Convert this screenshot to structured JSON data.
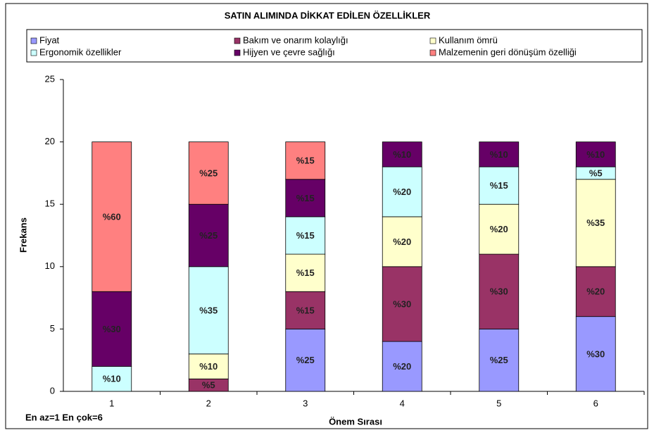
{
  "chart_data": {
    "type": "stacked_bar",
    "title": "SATIN ALIMINDA DİKKAT EDİLEN ÖZELLİKLER",
    "x_label": "Önem Sırası",
    "y_label": "Frekans",
    "annotation": "En az=1 En çok=6",
    "categories": [
      "1",
      "2",
      "3",
      "4",
      "5",
      "6"
    ],
    "ylim": [
      0,
      25
    ],
    "yticks": [
      0,
      5,
      10,
      15,
      20,
      25
    ],
    "grid": false,
    "legend": "top",
    "series": [
      {
        "name": "Fiyat",
        "color": "#9999ff",
        "values": [
          0,
          0,
          5,
          4,
          5,
          6
        ],
        "value_labels": [
          null,
          null,
          "%25",
          "%20",
          "%25",
          "%30"
        ]
      },
      {
        "name": "Bakım ve onarım kolaylığı",
        "color": "#993366",
        "values": [
          0,
          1,
          3,
          6,
          6,
          4
        ],
        "value_labels": [
          null,
          "%5",
          "%15",
          "%30",
          "%30",
          "%20"
        ]
      },
      {
        "name": "Kullanım ömrü",
        "color": "#ffffcc",
        "values": [
          0,
          2,
          3,
          4,
          4,
          7
        ],
        "value_labels": [
          null,
          "%10",
          "%15",
          "%20",
          "%20",
          "%35"
        ]
      },
      {
        "name": "Ergonomik özellikler",
        "color": "#ccffff",
        "values": [
          2,
          7,
          3,
          4,
          3,
          1
        ],
        "value_labels": [
          "%10",
          "%35",
          "%15",
          "%20",
          "%15",
          "%5"
        ]
      },
      {
        "name": "Hijyen ve çevre sağlığı",
        "color": "#660066",
        "values": [
          6,
          5,
          3,
          2,
          2,
          2
        ],
        "value_labels": [
          "%30",
          "%25",
          "%15",
          "%10",
          "%10",
          "%10"
        ]
      },
      {
        "name": "Malzemenin geri dönüşüm özelliği",
        "color": "#ff8080",
        "values": [
          12,
          5,
          3,
          0,
          0,
          0
        ],
        "value_labels": [
          "%60",
          "%25",
          "%15",
          null,
          null,
          null
        ]
      }
    ]
  }
}
